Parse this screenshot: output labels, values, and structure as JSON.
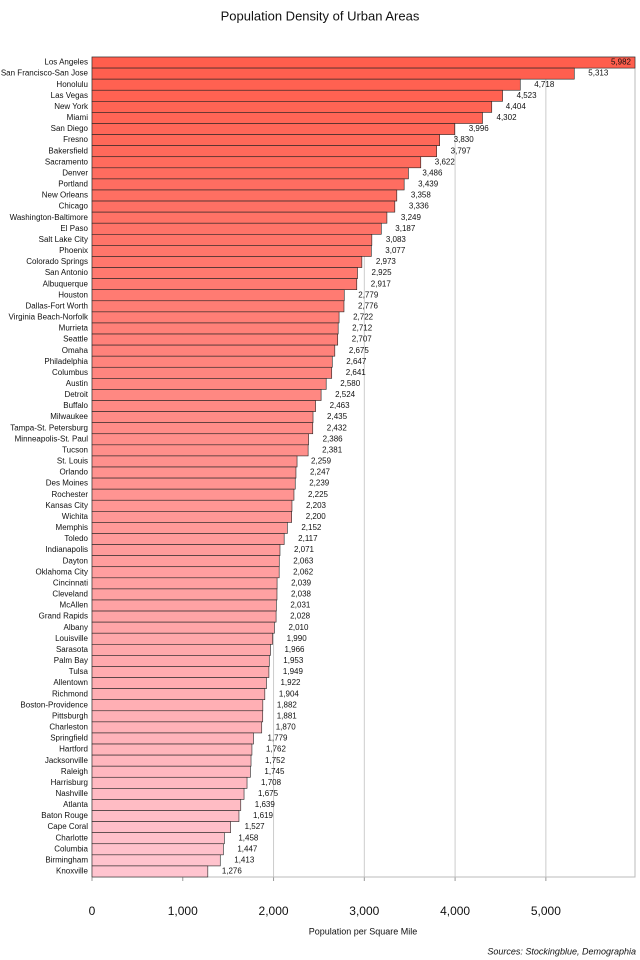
{
  "chart_data": {
    "type": "barh",
    "title": "Population Density of Urban Areas",
    "xlabel": "Population per Square Mile",
    "source": "Sources: Stockingblue, Demographia",
    "categories": [
      "Los Angeles",
      "San Francisco-San Jose",
      "Honolulu",
      "Las Vegas",
      "New York",
      "Miami",
      "San Diego",
      "Fresno",
      "Bakersfield",
      "Sacramento",
      "Denver",
      "Portland",
      "New Orleans",
      "Chicago",
      "Washington-Baltimore",
      "El Paso",
      "Salt Lake City",
      "Phoenix",
      "Colorado Springs",
      "San Antonio",
      "Albuquerque",
      "Houston",
      "Dallas-Fort Worth",
      "Virginia Beach-Norfolk",
      "Murrieta",
      "Seattle",
      "Omaha",
      "Philadelphia",
      "Columbus",
      "Austin",
      "Detroit",
      "Buffalo",
      "Milwaukee",
      "Tampa-St. Petersburg",
      "Minneapolis-St. Paul",
      "Tucson",
      "St. Louis",
      "Orlando",
      "Des Moines",
      "Rochester",
      "Kansas City",
      "Wichita",
      "Memphis",
      "Toledo",
      "Indianapolis",
      "Dayton",
      "Oklahoma City",
      "Cincinnati",
      "Cleveland",
      "McAllen",
      "Grand Rapids",
      "Albany",
      "Louisville",
      "Sarasota",
      "Palm Bay",
      "Tulsa",
      "Allentown",
      "Richmond",
      "Boston-Providence",
      "Pittsburgh",
      "Charleston",
      "Springfield",
      "Hartford",
      "Jacksonville",
      "Raleigh",
      "Harrisburg",
      "Nashville",
      "Atlanta",
      "Baton Rouge",
      "Cape Coral",
      "Charlotte",
      "Columbia",
      "Birmingham",
      "Knoxville"
    ],
    "values": [
      5982,
      5313,
      4718,
      4523,
      4404,
      4302,
      3996,
      3830,
      3797,
      3622,
      3486,
      3439,
      3358,
      3336,
      3249,
      3187,
      3083,
      3077,
      2973,
      2925,
      2917,
      2779,
      2776,
      2722,
      2712,
      2707,
      2675,
      2647,
      2641,
      2580,
      2524,
      2463,
      2435,
      2432,
      2386,
      2381,
      2259,
      2247,
      2239,
      2225,
      2203,
      2200,
      2152,
      2117,
      2071,
      2063,
      2062,
      2039,
      2038,
      2031,
      2028,
      2010,
      1990,
      1966,
      1953,
      1949,
      1922,
      1904,
      1882,
      1881,
      1870,
      1779,
      1762,
      1752,
      1745,
      1708,
      1675,
      1639,
      1619,
      1527,
      1458,
      1447,
      1413,
      1276
    ],
    "value_labels": [
      "5,982",
      "5,313",
      "4,718",
      "4,523",
      "4,404",
      "4,302",
      "3,996",
      "3,830",
      "3,797",
      "3,622",
      "3,486",
      "3,439",
      "3,358",
      "3,336",
      "3,249",
      "3,187",
      "3,083",
      "3,077",
      "2,973",
      "2,925",
      "2,917",
      "2,779",
      "2,776",
      "2,722",
      "2,712",
      "2,707",
      "2,675",
      "2,647",
      "2,641",
      "2,580",
      "2,524",
      "2,463",
      "2,435",
      "2,432",
      "2,386",
      "2,381",
      "2,259",
      "2,247",
      "2,239",
      "2,225",
      "2,203",
      "2,200",
      "2,152",
      "2,117",
      "2,071",
      "2,063",
      "2,062",
      "2,039",
      "2,038",
      "2,031",
      "2,028",
      "2,010",
      "1,990",
      "1,966",
      "1,953",
      "1,949",
      "1,922",
      "1,904",
      "1,882",
      "1,881",
      "1,870",
      "1,779",
      "1,762",
      "1,752",
      "1,745",
      "1,708",
      "1,675",
      "1,639",
      "1,619",
      "1,527",
      "1,458",
      "1,447",
      "1,413",
      "1,276"
    ],
    "color_start": "#ff5e4d",
    "color_end": "#ffc4cf",
    "xlim": [
      0,
      5982
    ],
    "xticks": [
      0,
      {
        "value": 1000,
        "label": "1,000"
      },
      {
        "value": 2000,
        "label": "2,000"
      },
      {
        "value": 3000,
        "label": "3,000"
      },
      {
        "value": 4000,
        "label": "4,000"
      },
      {
        "value": 5000,
        "label": "5,000"
      }
    ],
    "grid": true
  }
}
